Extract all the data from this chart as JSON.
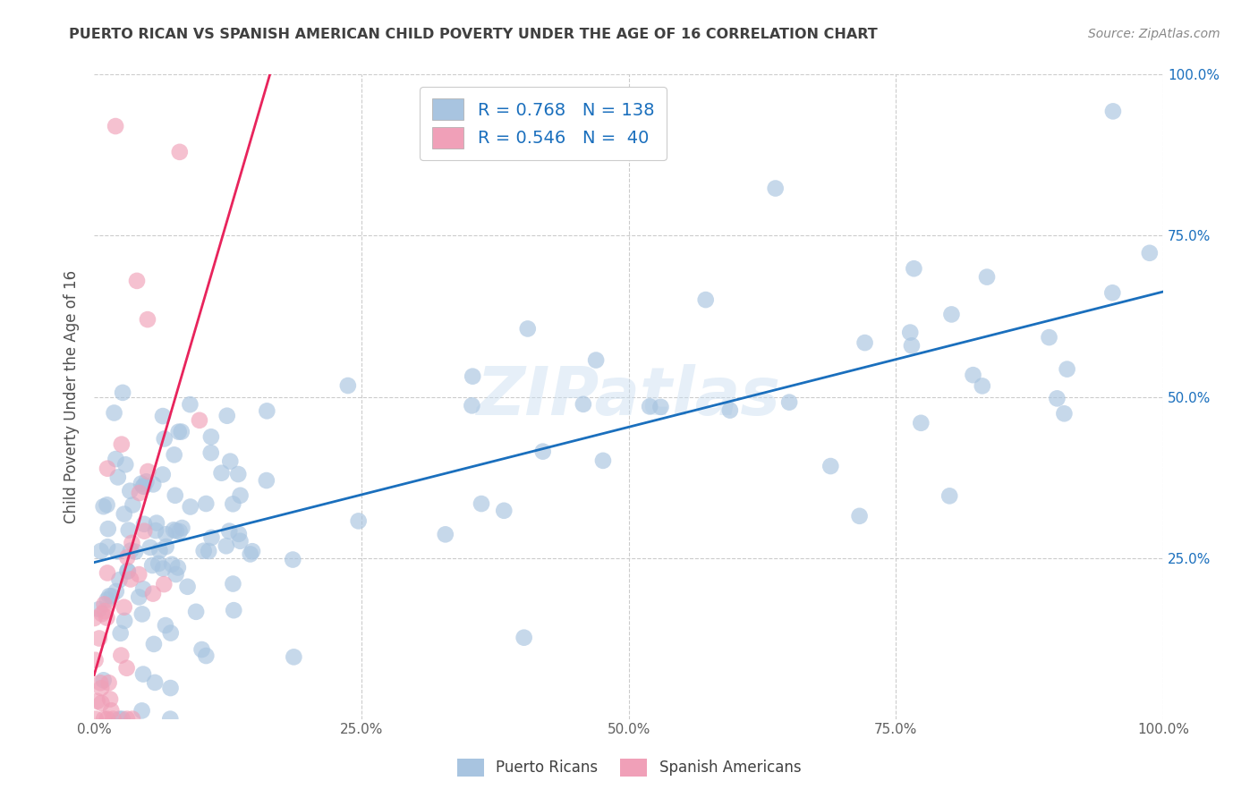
{
  "title": "PUERTO RICAN VS SPANISH AMERICAN CHILD POVERTY UNDER THE AGE OF 16 CORRELATION CHART",
  "source": "Source: ZipAtlas.com",
  "ylabel": "Child Poverty Under the Age of 16",
  "xlim": [
    0.0,
    1.0
  ],
  "ylim": [
    0.0,
    1.0
  ],
  "xticks": [
    0.0,
    0.25,
    0.5,
    0.75,
    1.0
  ],
  "yticks": [
    0.0,
    0.25,
    0.5,
    0.75,
    1.0
  ],
  "xticklabels": [
    "0.0%",
    "25.0%",
    "50.0%",
    "75.0%",
    "100.0%"
  ],
  "right_yticklabels": [
    "",
    "25.0%",
    "50.0%",
    "75.0%",
    "100.0%"
  ],
  "blue_R": 0.768,
  "blue_N": 138,
  "pink_R": 0.546,
  "pink_N": 40,
  "blue_color": "#a8c4e0",
  "pink_color": "#f0a0b8",
  "blue_line_color": "#1a6fbd",
  "pink_line_color": "#e8245c",
  "series1_label": "Puerto Ricans",
  "series2_label": "Spanish Americans",
  "watermark": "ZIPatlas",
  "background_color": "#ffffff",
  "grid_color": "#cccccc",
  "title_color": "#404040",
  "label_color": "#505050",
  "tick_color": "#606060"
}
